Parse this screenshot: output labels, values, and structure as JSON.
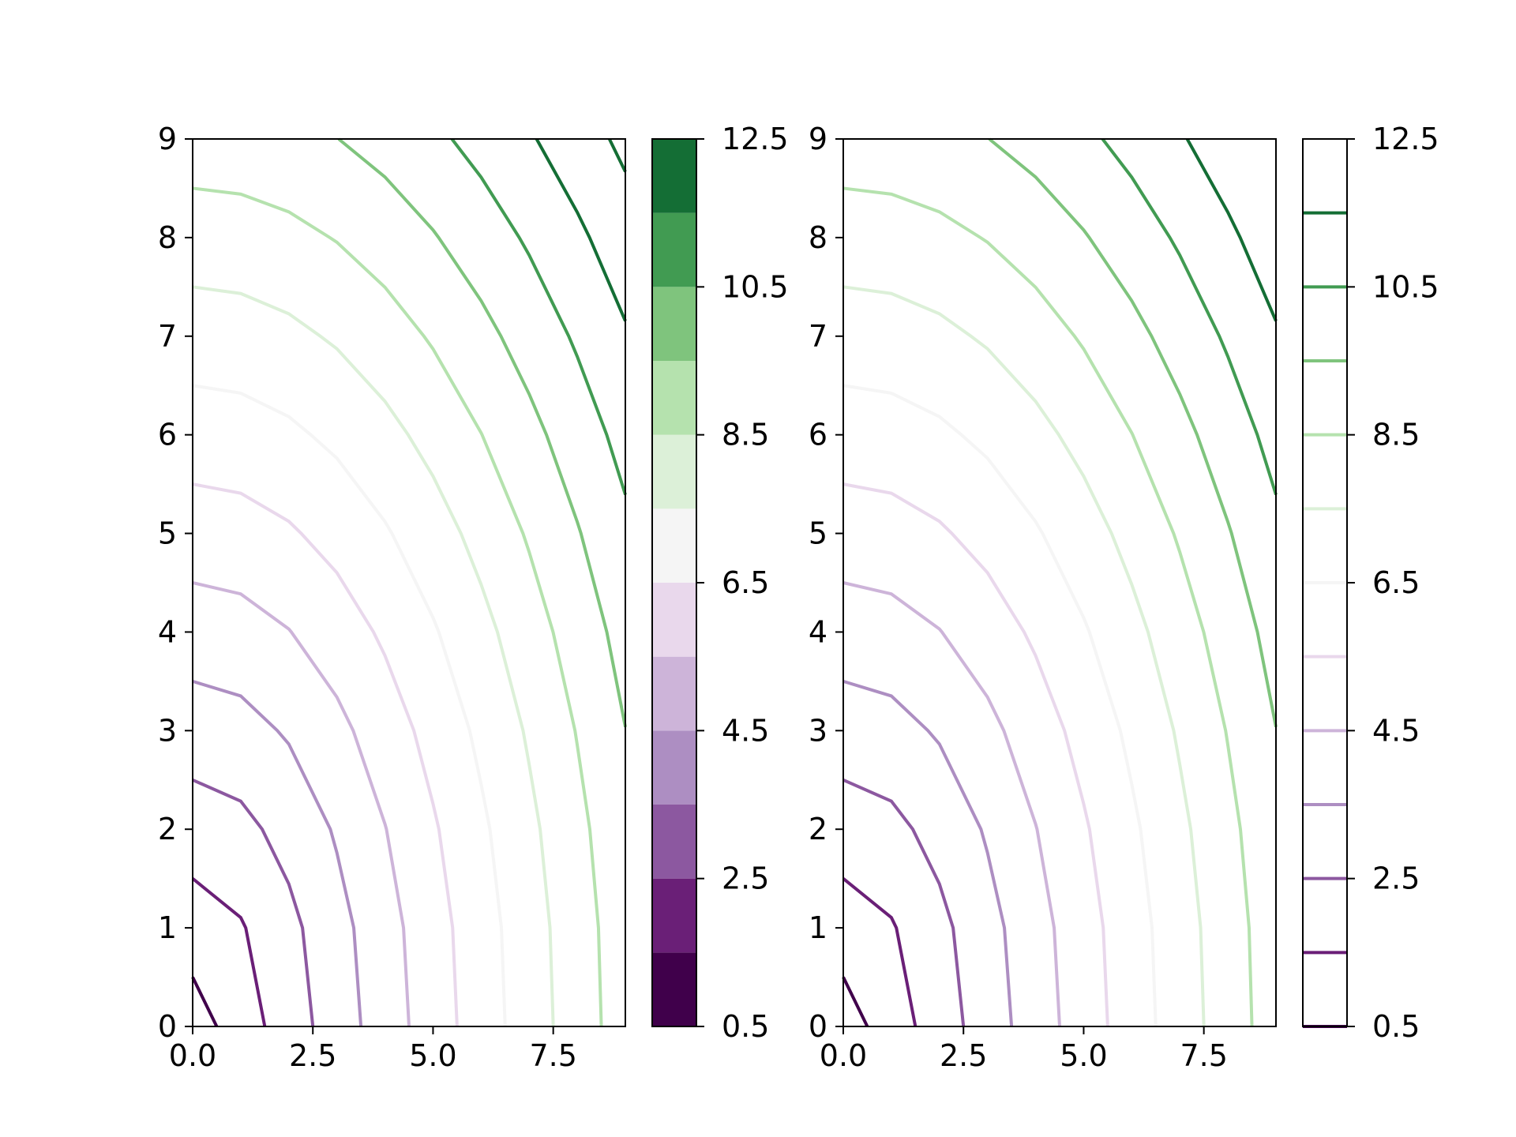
{
  "chart_data": [
    {
      "type": "contour",
      "title": "",
      "xlabel": "",
      "ylabel": "",
      "xlim": [
        0,
        9
      ],
      "ylim": [
        0,
        9
      ],
      "grid": false,
      "x_ticks": [
        "0.0",
        "2.5",
        "5.0",
        "7.5"
      ],
      "y_ticks": [
        "0",
        "1",
        "2",
        "3",
        "4",
        "5",
        "6",
        "7",
        "8",
        "9"
      ],
      "function": "z = sqrt(x^2 + y^2) on integer grid 0..9",
      "levels": [
        0.5,
        1.5,
        2.5,
        3.5,
        4.5,
        5.5,
        6.5,
        7.5,
        8.5,
        9.5,
        10.5,
        11.5,
        12.5
      ],
      "colormap": "PRGn",
      "colorbar": {
        "type": "filled",
        "range": [
          0.5,
          12.5
        ],
        "tick_labels": [
          "0.5",
          "2.5",
          "4.5",
          "6.5",
          "8.5",
          "10.5",
          "12.5"
        ],
        "band_colors": [
          "#40004b",
          "#6a1f77",
          "#8c58a0",
          "#ad8ec2",
          "#cdb4d9",
          "#e9d8ec",
          "#f5f5f5",
          "#dcf0d8",
          "#b5e2ae",
          "#7fc47d",
          "#419b52",
          "#146e35"
        ]
      }
    },
    {
      "type": "contour",
      "title": "",
      "xlabel": "",
      "ylabel": "",
      "xlim": [
        0,
        9
      ],
      "ylim": [
        0,
        9
      ],
      "grid": false,
      "x_ticks": [
        "0.0",
        "2.5",
        "5.0",
        "7.5"
      ],
      "y_ticks": [
        "0",
        "1",
        "2",
        "3",
        "4",
        "5",
        "6",
        "7",
        "8",
        "9"
      ],
      "function": "z = sqrt(x^2 + y^2) on integer grid 0..9",
      "levels": [
        0.5,
        1.5,
        2.5,
        3.5,
        4.5,
        5.5,
        6.5,
        7.5,
        8.5,
        9.5,
        10.5,
        11.5,
        12.5
      ],
      "colormap": "PRGn",
      "colorbar": {
        "type": "lines",
        "range": [
          0.5,
          12.5
        ],
        "tick_labels": [
          "0.5",
          "2.5",
          "4.5",
          "6.5",
          "8.5",
          "10.5",
          "12.5"
        ],
        "line_colors": [
          "#40004b",
          "#6a1f77",
          "#8c58a0",
          "#ad8ec2",
          "#cdb4d9",
          "#e9d8ec",
          "#f5f5f5",
          "#dcf0d8",
          "#b5e2ae",
          "#7fc47d",
          "#419b52",
          "#146e35",
          "#ffffff"
        ]
      }
    }
  ]
}
